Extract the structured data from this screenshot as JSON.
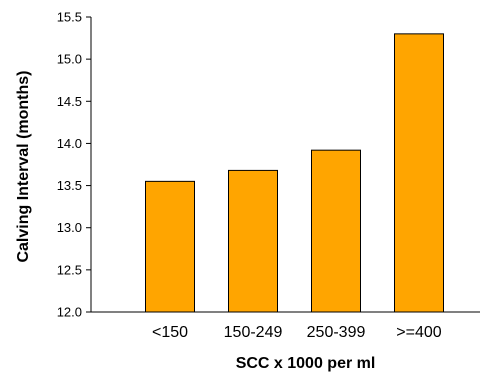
{
  "chart_data": {
    "type": "bar",
    "title": "",
    "xlabel": "SCC x 1000 per ml",
    "ylabel": "Calving Interval (months)",
    "categories": [
      "<150",
      "150-249",
      "250-399",
      ">=400"
    ],
    "values": [
      13.55,
      13.68,
      13.92,
      15.3
    ],
    "ylim": [
      12.0,
      15.5
    ],
    "yticks": [
      "12.0",
      "12.5",
      "13.0",
      "13.5",
      "14.0",
      "14.5",
      "15.0",
      "15.5"
    ],
    "bar_color": "#FFA500",
    "bar_edge_color": "#000000",
    "grid": false,
    "legend": "none"
  }
}
